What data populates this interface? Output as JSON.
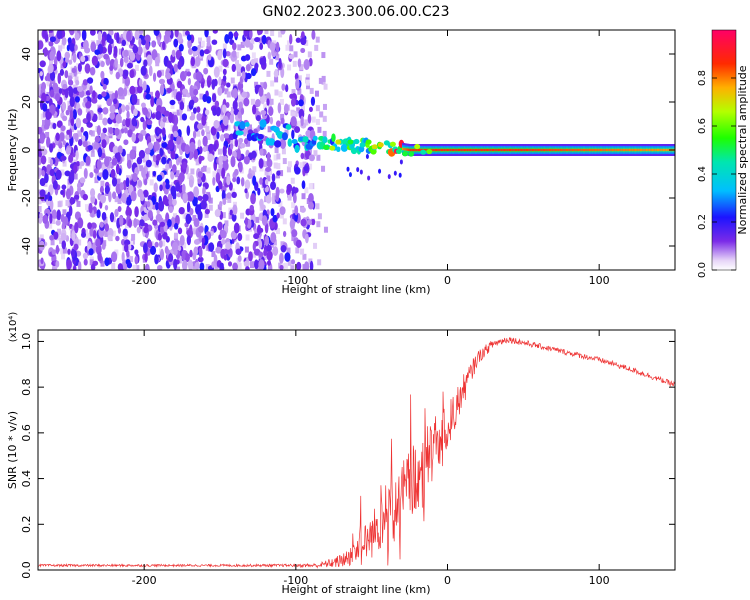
{
  "title": "GN02.2023.300.06.00.C23",
  "chart_data": [
    {
      "type": "heatmap",
      "xlabel": "Height of straight line (km)",
      "ylabel": "Frequency (Hz)",
      "xlim": [
        -270,
        150
      ],
      "ylim": [
        -50,
        50
      ],
      "x_ticks": [
        -200,
        -100,
        0,
        100
      ],
      "x_ticks_labels": [
        "-200",
        "-100",
        "0",
        "100"
      ],
      "y_ticks": [
        -40,
        -20,
        0,
        20,
        40
      ],
      "y_ticks_labels": [
        "-40",
        "-20",
        "0",
        "20",
        "40"
      ],
      "colorbar": {
        "label": "Normalized spectral amplitude",
        "range": [
          0,
          1
        ],
        "ticks": [
          0.0,
          0.2,
          0.4,
          0.6,
          0.8
        ],
        "ticks_labels": [
          "0.0",
          "0.2",
          "0.4",
          "0.6",
          "0.8"
        ]
      },
      "noise_region_x": [
        -270,
        -88
      ],
      "ridge": {
        "x": [
          -270,
          -200,
          -150,
          -120,
          -100,
          -80,
          -60,
          -45,
          -35,
          -25,
          -10,
          0,
          50,
          100,
          150
        ],
        "frequency": [
          10,
          10,
          8,
          7,
          5,
          3,
          2,
          1,
          1,
          0,
          0,
          0,
          0,
          0,
          0
        ],
        "amplitude": [
          0.15,
          0.2,
          0.3,
          0.35,
          0.4,
          0.45,
          0.5,
          0.6,
          0.8,
          1.0,
          1.0,
          1.0,
          1.0,
          0.95,
          0.9
        ]
      }
    },
    {
      "type": "line",
      "xlabel": "Height of straight line (km)",
      "ylabel": "SNR (10 * v/v)",
      "y_multiplier": "(x10⁴)",
      "xlim": [
        -270,
        150
      ],
      "ylim": [
        0,
        1.05
      ],
      "x_ticks": [
        -200,
        -100,
        0,
        100
      ],
      "x_ticks_labels": [
        "-200",
        "-100",
        "0",
        "100"
      ],
      "y_ticks": [
        0.0,
        0.2,
        0.4,
        0.6,
        0.8,
        1.0
      ],
      "y_ticks_labels": [
        "0.0",
        "0.2",
        "0.4",
        "0.6",
        "0.8",
        "1.0"
      ],
      "series": [
        {
          "color": "#ee3333",
          "x": [
            -270,
            -200,
            -150,
            -100,
            -85,
            -70,
            -60,
            -50,
            -40,
            -30,
            -20,
            -10,
            0,
            10,
            20,
            30,
            40,
            60,
            80,
            100,
            120,
            150
          ],
          "y": [
            0.02,
            0.02,
            0.02,
            0.02,
            0.02,
            0.04,
            0.08,
            0.15,
            0.25,
            0.32,
            0.42,
            0.52,
            0.62,
            0.78,
            0.93,
            0.99,
            1.01,
            0.98,
            0.95,
            0.92,
            0.88,
            0.81
          ],
          "noise": [
            0.005,
            0.005,
            0.005,
            0.006,
            0.01,
            0.03,
            0.06,
            0.1,
            0.14,
            0.16,
            0.16,
            0.15,
            0.1,
            0.07,
            0.03,
            0.02,
            0.015,
            0.012,
            0.012,
            0.012,
            0.012,
            0.012
          ]
        }
      ]
    }
  ]
}
